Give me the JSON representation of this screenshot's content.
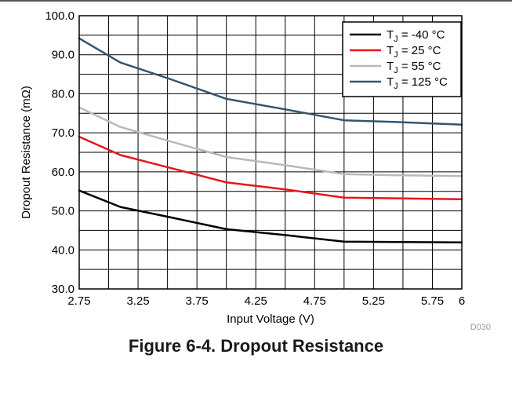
{
  "figure": {
    "caption": "Figure 6-4. Dropout Resistance",
    "code": "D030"
  },
  "chart_data": {
    "type": "line",
    "xlabel": "Input Voltage (V)",
    "ylabel": "Dropout Resistance (mΩ)",
    "xlim": [
      2.75,
      6
    ],
    "ylim": [
      30,
      100
    ],
    "x_ticks": [
      2.75,
      3.25,
      3.75,
      4.25,
      4.75,
      5.25,
      5.75,
      6
    ],
    "x_tick_labels": [
      "2.75",
      "3.25",
      "3.75",
      "4.25",
      "4.75",
      "5.25",
      "5.75",
      "6"
    ],
    "y_ticks": [
      30,
      40,
      50,
      60,
      70,
      80,
      90,
      100
    ],
    "y_tick_labels": [
      "30.0",
      "40.0",
      "50.0",
      "60.0",
      "70.0",
      "80.0",
      "90.0",
      "100.0"
    ],
    "x_minor_step": 0.25,
    "y_minor_step": 5,
    "grid": true,
    "legend_position": "top-right",
    "series": [
      {
        "name": "TJ = -40 °C",
        "legend_prefix": "T",
        "legend_sub": "J",
        "legend_suffix": " = -40 °C",
        "color": "#000000",
        "x": [
          2.75,
          3.1,
          3.5,
          4.0,
          4.5,
          5.0,
          5.5,
          6.0
        ],
        "y": [
          55.2,
          51.0,
          48.5,
          45.3,
          43.8,
          42.1,
          42.0,
          41.9
        ]
      },
      {
        "name": "TJ = 25 °C",
        "legend_prefix": "T",
        "legend_sub": "J",
        "legend_suffix": " = 25 °C",
        "color": "#e8161b",
        "x": [
          2.75,
          3.1,
          3.5,
          4.0,
          4.5,
          5.0,
          5.5,
          6.0
        ],
        "y": [
          69.0,
          64.3,
          61.2,
          57.3,
          55.5,
          53.4,
          53.2,
          53.0
        ]
      },
      {
        "name": "TJ = 55 °C",
        "legend_prefix": "T",
        "legend_sub": "J",
        "legend_suffix": " = 55 °C",
        "color": "#b9b9b9",
        "x": [
          2.75,
          3.1,
          3.5,
          4.0,
          4.5,
          5.0,
          5.5,
          6.0
        ],
        "y": [
          76.5,
          71.5,
          68.0,
          63.8,
          61.7,
          59.4,
          59.1,
          58.9
        ]
      },
      {
        "name": "TJ = 125 °C",
        "legend_prefix": "T",
        "legend_sub": "J",
        "legend_suffix": " = 125 °C",
        "color": "#33556e",
        "x": [
          2.75,
          3.1,
          3.5,
          4.0,
          4.5,
          5.0,
          5.5,
          6.0
        ],
        "y": [
          94.2,
          88.0,
          84.0,
          78.7,
          76.0,
          73.2,
          72.7,
          72.1
        ]
      }
    ]
  }
}
